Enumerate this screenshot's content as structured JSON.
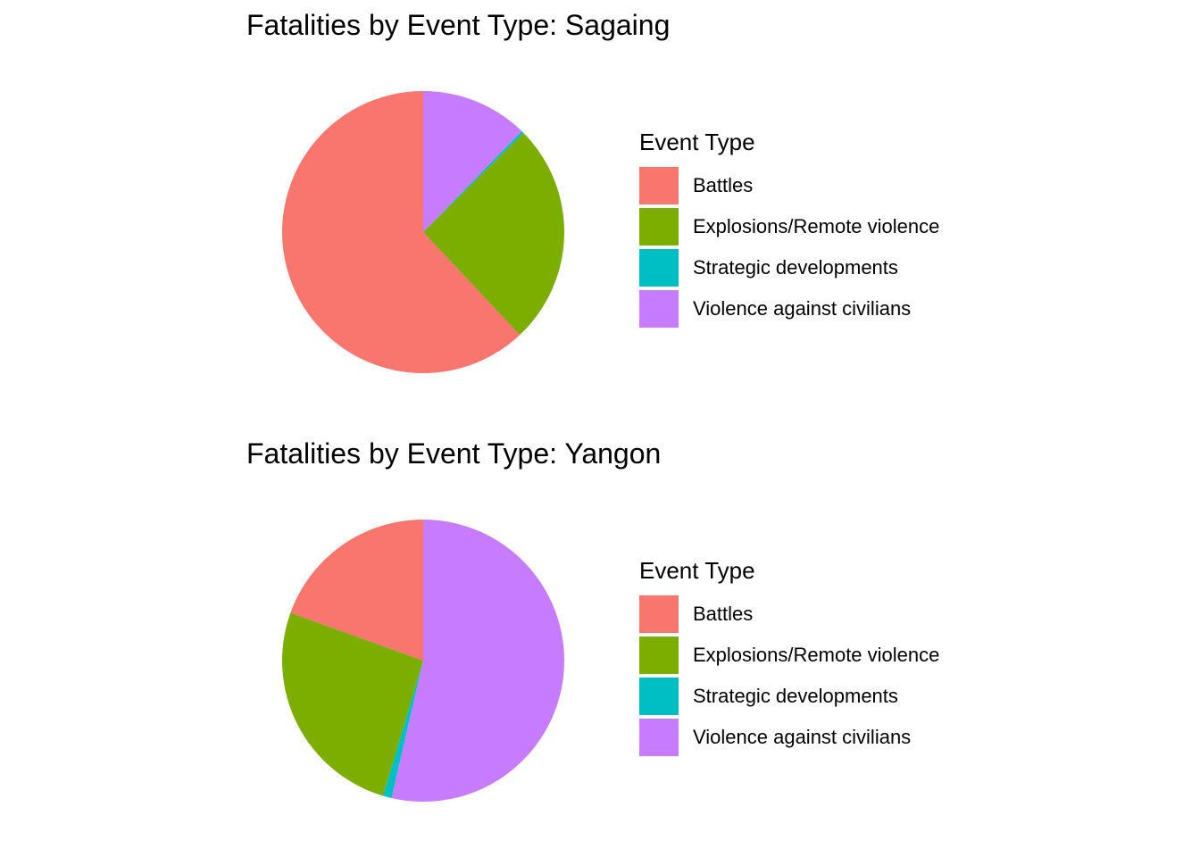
{
  "chart_data": [
    {
      "type": "pie",
      "title": "Fatalities by Event Type: Sagaing",
      "legend_title": "Event Type",
      "legend_position": "right",
      "categories": [
        "Battles",
        "Explosions/Remote violence",
        "Strategic developments",
        "Violence against civilians"
      ],
      "values": [
        62.0,
        25.4,
        0.3,
        12.3
      ],
      "colors": [
        "#F8766D",
        "#7CAE00",
        "#00BFC4",
        "#C77CFF"
      ]
    },
    {
      "type": "pie",
      "title": "Fatalities by Event Type: Yangon",
      "legend_title": "Event Type",
      "legend_position": "right",
      "categories": [
        "Battles",
        "Explosions/Remote violence",
        "Strategic developments",
        "Violence against civilians"
      ],
      "values": [
        19.5,
        25.9,
        1.0,
        53.6
      ],
      "colors": [
        "#F8766D",
        "#7CAE00",
        "#00BFC4",
        "#C77CFF"
      ]
    }
  ]
}
